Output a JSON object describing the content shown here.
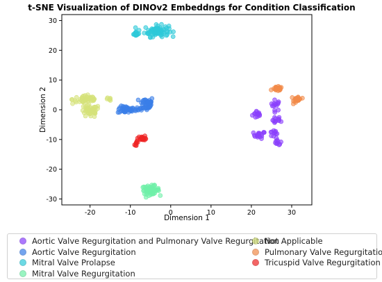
{
  "chart_data": {
    "type": "scatter",
    "title": "t-SNE Visualization of DINOv2 Embeddngs for Condition Classification",
    "xlabel": "Dimension 1",
    "ylabel": "Dimension 2",
    "xlim": [
      -27,
      35
    ],
    "ylim": [
      -32,
      32
    ],
    "xticks": [
      -20,
      -10,
      0,
      10,
      20,
      30
    ],
    "yticks": [
      -30,
      -20,
      -10,
      0,
      10,
      20,
      30
    ],
    "grid": false,
    "legend_position": "bottom",
    "series": [
      {
        "name": "Aortic Valve Regurgitation and Pulmonary Valve Regurgitation",
        "color": "#8a3ffc",
        "clusters": [
          [
            21.5,
            -1.5,
            1.0,
            1.2,
            14
          ],
          [
            26.0,
            1.5,
            1.0,
            1.5,
            14
          ],
          [
            26.5,
            -3.5,
            1.0,
            1.0,
            12
          ],
          [
            22.0,
            -8.5,
            1.2,
            1.0,
            18
          ],
          [
            25.5,
            -8.0,
            1.0,
            1.0,
            10
          ],
          [
            26.5,
            -11.0,
            0.8,
            1.0,
            10
          ]
        ]
      },
      {
        "name": "Aortic Valve Regurgitation",
        "color": "#3a7ee8",
        "clusters": [
          [
            -11.0,
            0.0,
            1.8,
            1.0,
            40
          ],
          [
            -6.0,
            2.0,
            1.5,
            2.0,
            40
          ],
          [
            -7.5,
            0.5,
            0.8,
            0.8,
            8
          ]
        ]
      },
      {
        "name": "Mitral Valve Prolapse",
        "color": "#2ec9d9",
        "clusters": [
          [
            -3.5,
            26.5,
            2.5,
            1.6,
            80
          ],
          [
            -8.5,
            25.5,
            0.6,
            0.6,
            14
          ]
        ]
      },
      {
        "name": "Mitral Valve Regurgitation",
        "color": "#6ff0a8",
        "clusters": [
          [
            -5.0,
            -27.0,
            1.8,
            1.2,
            60
          ]
        ]
      },
      {
        "name": "Not Applicable",
        "color": "#d5e27a",
        "clusters": [
          [
            -21.0,
            3.5,
            2.8,
            1.3,
            45
          ],
          [
            -20.0,
            -0.5,
            2.0,
            1.8,
            45
          ],
          [
            -15.5,
            3.5,
            0.6,
            0.4,
            6
          ]
        ]
      },
      {
        "name": "Pulmonary Valve Regurgitation",
        "color": "#f28b4a",
        "clusters": [
          [
            26.5,
            7.0,
            1.0,
            0.6,
            25
          ],
          [
            31.5,
            3.5,
            0.8,
            1.0,
            25
          ]
        ]
      },
      {
        "name": "Tricuspid Valve Regurgitation",
        "color": "#ef2424",
        "clusters": [
          [
            -7.0,
            -9.5,
            0.9,
            0.6,
            18
          ],
          [
            -8.5,
            -11.5,
            0.4,
            0.7,
            8
          ]
        ]
      }
    ]
  }
}
